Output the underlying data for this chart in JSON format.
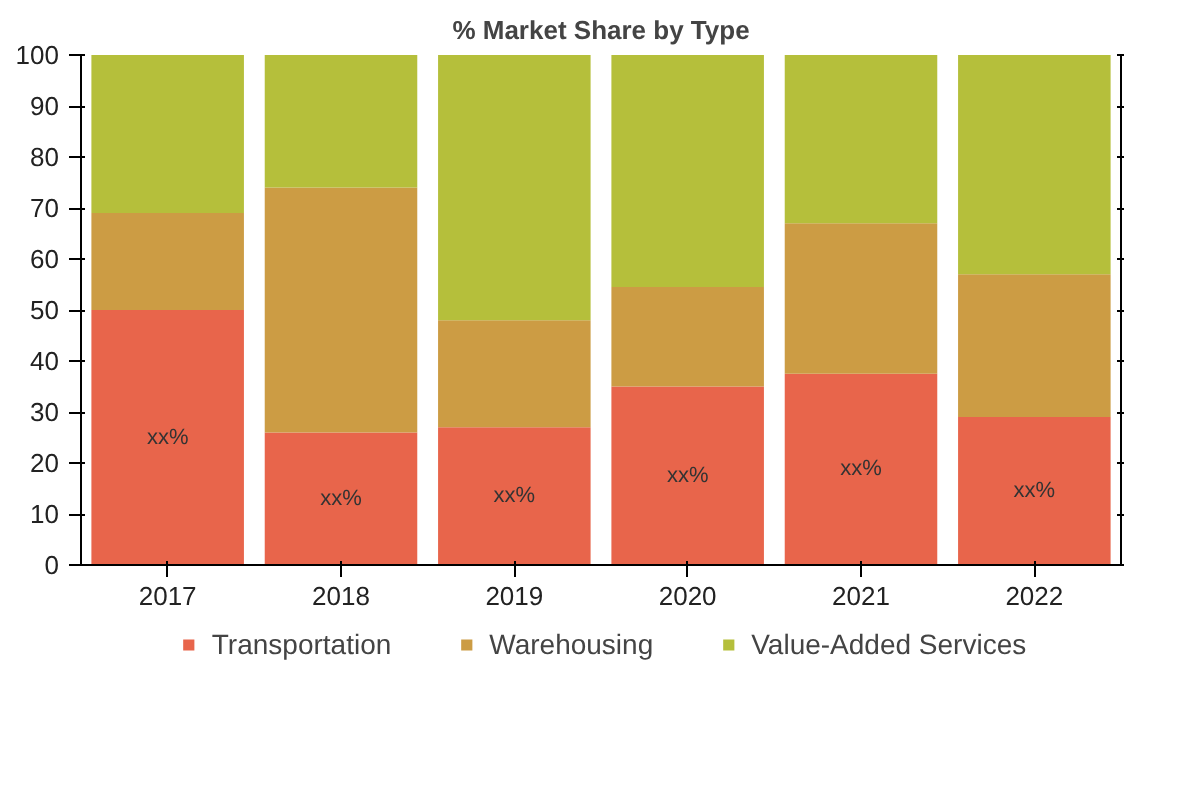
{
  "chart_data": {
    "type": "bar",
    "title": "% Market Share by Type",
    "stacked": true,
    "categories": [
      "2017",
      "2018",
      "2019",
      "2020",
      "2021",
      "2022"
    ],
    "series": [
      {
        "name": "Transportation",
        "color": "#e8654b",
        "values": [
          50,
          26,
          27,
          35,
          37.5,
          29
        ],
        "value_labels": [
          "xx%",
          "xx%",
          "xx%",
          "xx%",
          "xx%",
          "xx%"
        ]
      },
      {
        "name": "Warehousing",
        "color": "#cc9c44",
        "values": [
          19,
          48,
          21,
          19.5,
          29.5,
          28
        ]
      },
      {
        "name": "Value-Added Services",
        "color": "#b5bf3b",
        "values": [
          31,
          26,
          52,
          45.5,
          33,
          43
        ]
      }
    ],
    "ylim": [
      0,
      100
    ],
    "yticks": [
      0,
      10,
      20,
      30,
      40,
      50,
      60,
      70,
      80,
      90,
      100
    ],
    "grid": false,
    "legend": "bottom"
  }
}
